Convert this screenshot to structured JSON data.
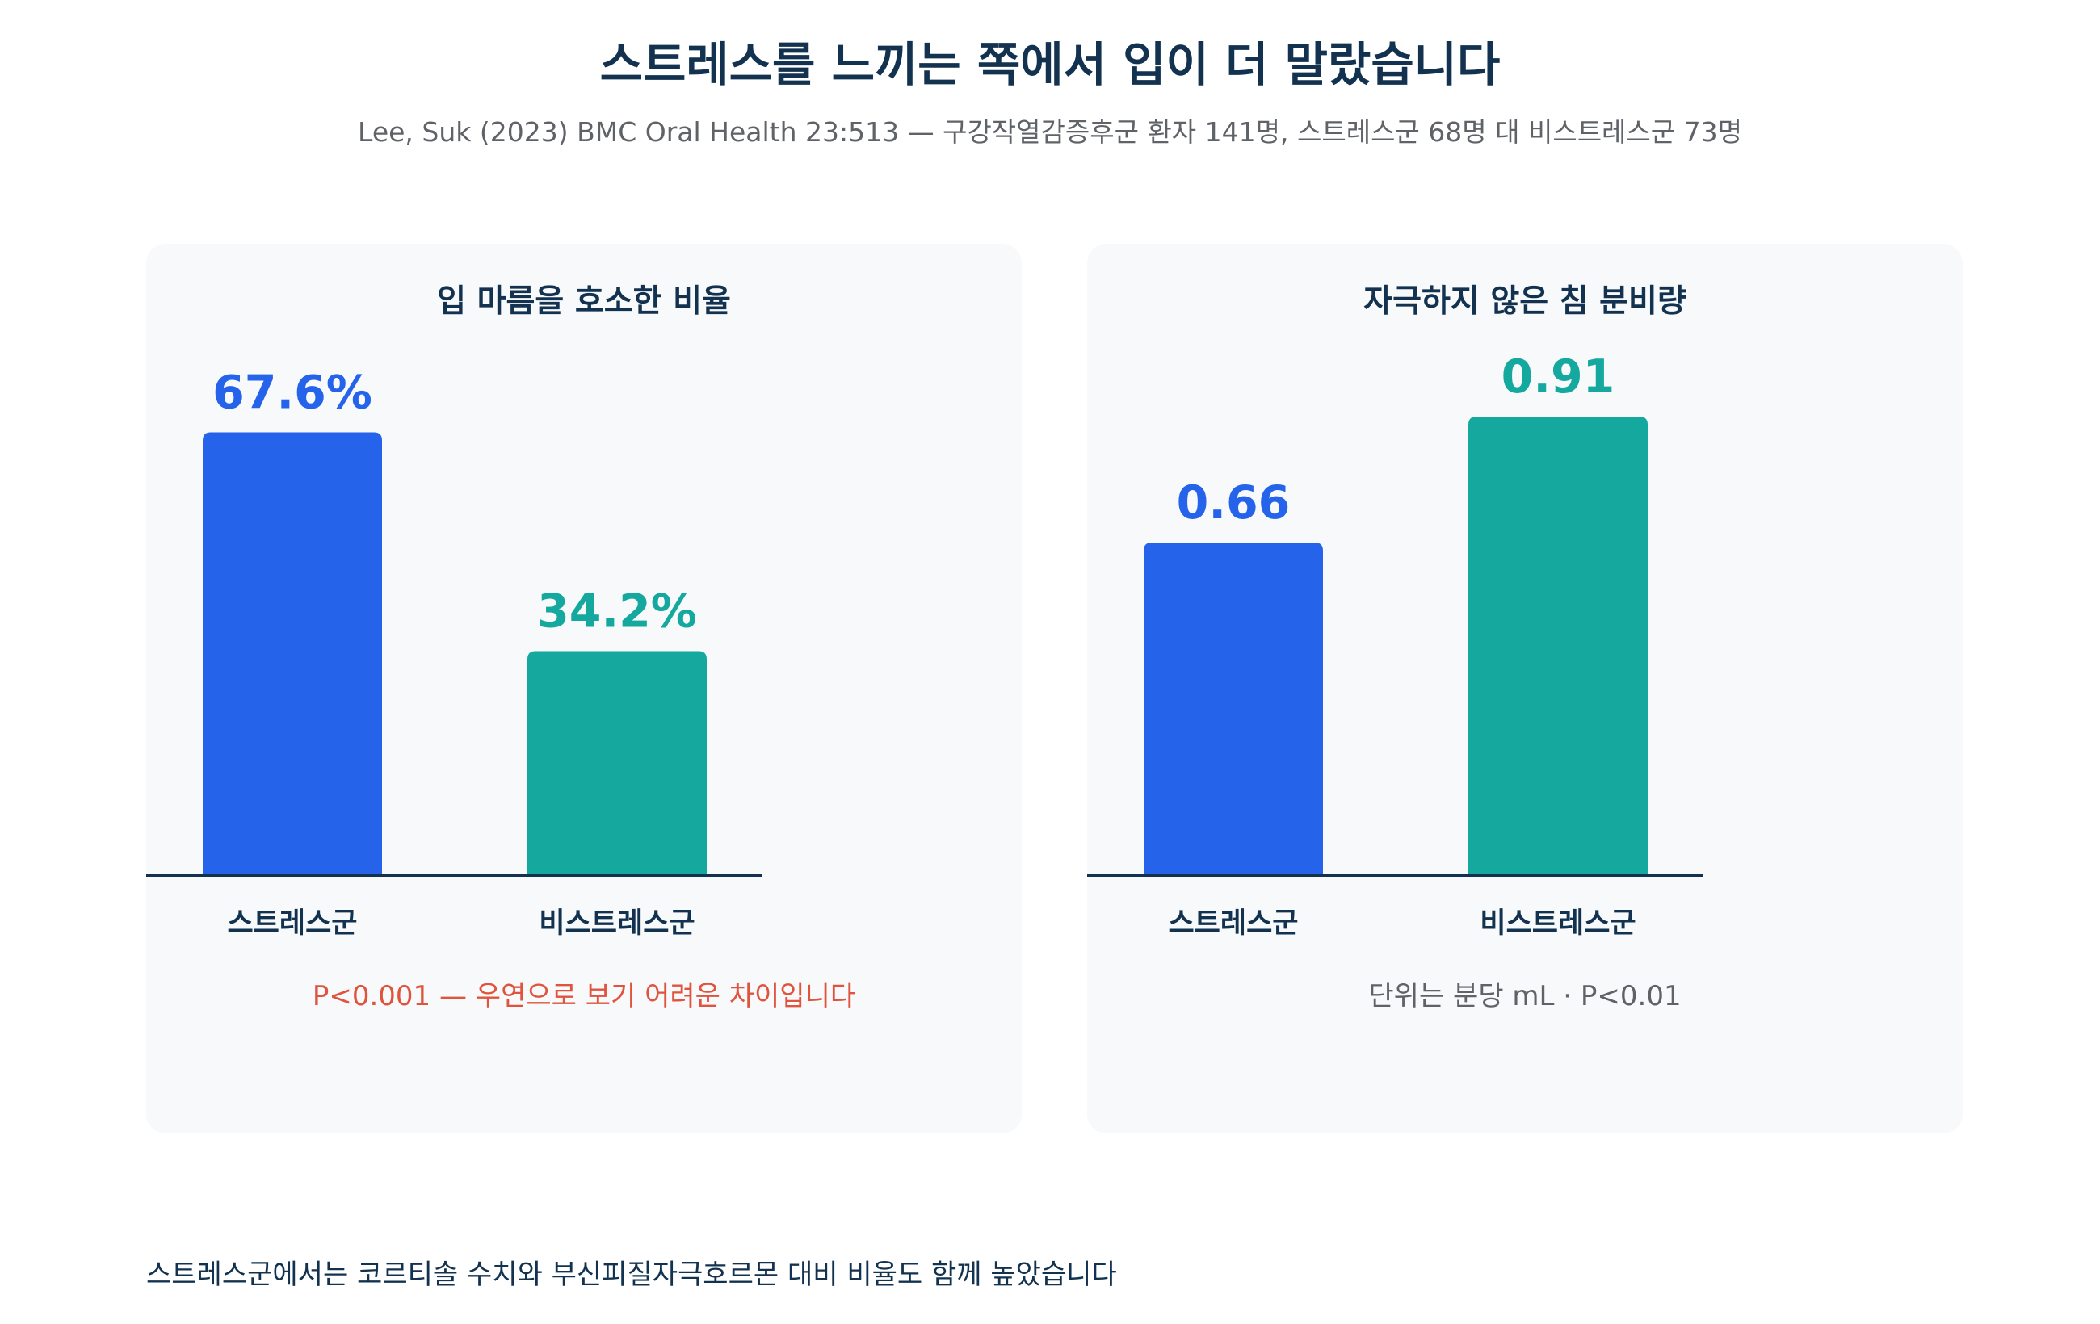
{
  "title": "스트레스를 느끼는 쪽에서 입이 더 말랐습니다",
  "subtitle": "Lee, Suk (2023) BMC Oral Health 23:513 — 구강작열감증후군 환자 141명, 스트레스군 68명 대 비스트레스군 73명",
  "colors": {
    "stress": "#2563eb",
    "non_stress": "#14a89e",
    "axis": "#12324f",
    "panel_bg": "#f7f9fb"
  },
  "chart_data": [
    {
      "type": "bar",
      "title": "입 마름을 호소한 비율",
      "categories": [
        "스트레스군",
        "비스트레스군"
      ],
      "values": [
        67.6,
        34.2
      ],
      "value_labels": [
        "67.6%",
        "34.2%"
      ],
      "unit": "%",
      "ylim": [
        0,
        70
      ],
      "note": "P<0.001 — 우연으로 보기 어려운 차이입니다"
    },
    {
      "type": "bar",
      "title": "자극하지 않은 침 분비량",
      "categories": [
        "스트레스군",
        "비스트레스군"
      ],
      "values": [
        0.66,
        0.91
      ],
      "value_labels": [
        "0.66",
        "0.91"
      ],
      "unit": "mL/분",
      "ylim": [
        0,
        0.91
      ],
      "note": "단위는 분당 mL · P<0.01"
    }
  ],
  "footnote": "스트레스군에서는 코르티솔 수치와 부신피질자극호르몬 대비 비율도 함께 높았습니다"
}
